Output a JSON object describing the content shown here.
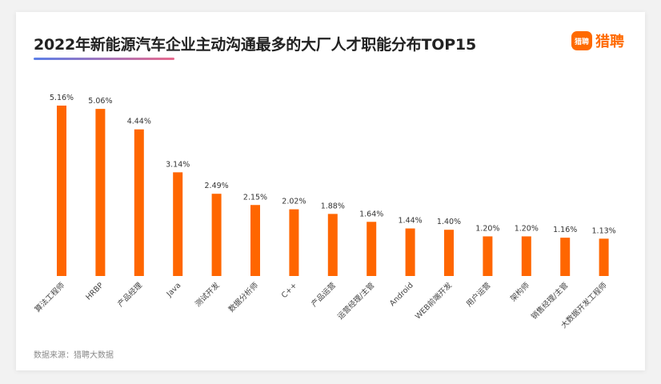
{
  "header": {
    "title": "2022年新能源汽车企业主动沟通最多的大厂人才职能分布TOP15"
  },
  "logo": {
    "icon_name": "liepin-logo-icon",
    "icon_text": "猎聘",
    "text": "猎聘",
    "color": "#ff6a00"
  },
  "footer": {
    "source": "数据来源：猎聘大数据"
  },
  "chart_data": {
    "type": "bar",
    "title": "2022年新能源汽车企业主动沟通最多的大厂人才职能分布TOP15",
    "categories": [
      "算法工程师",
      "HRBP",
      "产品经理",
      "Java",
      "测试开发",
      "数据分析师",
      "C++",
      "产品运营",
      "运营经理/主管",
      "Android",
      "WEB前端开发",
      "用户运营",
      "架构师",
      "销售经理/主管",
      "大数据开发工程师"
    ],
    "values": [
      5.16,
      5.06,
      4.44,
      3.14,
      2.49,
      2.15,
      2.02,
      1.88,
      1.64,
      1.44,
      1.4,
      1.2,
      1.2,
      1.16,
      1.13
    ],
    "labels": [
      "5.16%",
      "5.06%",
      "4.44%",
      "3.14%",
      "2.49%",
      "2.15%",
      "2.02%",
      "1.88%",
      "1.64%",
      "1.44%",
      "1.40%",
      "1.20%",
      "1.20%",
      "1.16%",
      "1.13%"
    ],
    "unit": "%",
    "ylim": [
      0,
      5.16
    ],
    "bar_color": "#ff6600",
    "grid": false,
    "legend": "none"
  }
}
